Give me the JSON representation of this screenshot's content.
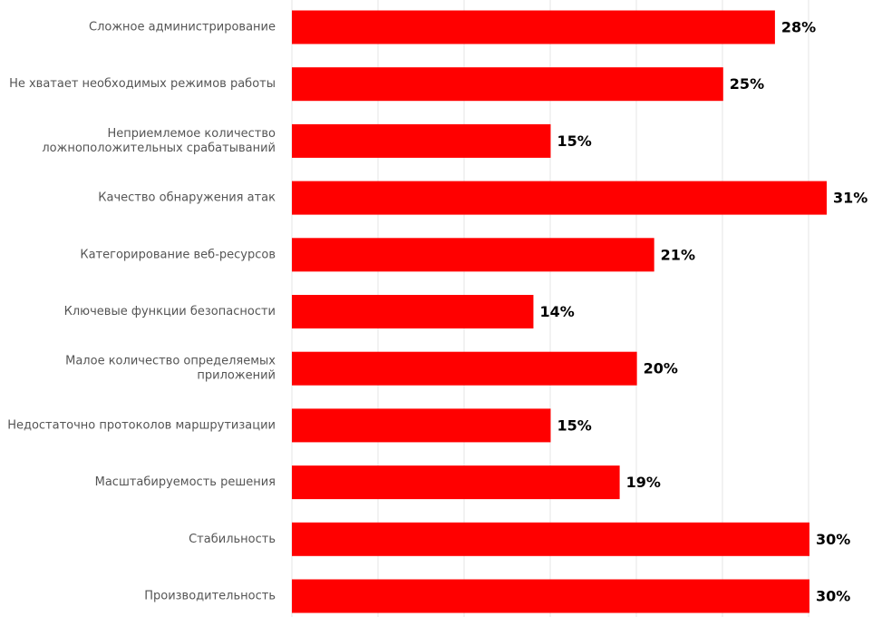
{
  "chart_data": {
    "type": "bar",
    "orientation": "horizontal",
    "categories": [
      "Сложное администрирование",
      "Не хватает необходимых режимов работы",
      "Неприемлемое количество ложноположительных срабатываний",
      "Качество обнаружения атак",
      "Категорирование веб-ресурсов",
      "Ключевые функции безопасности",
      "Малое количество определяемых приложений",
      "Недостаточно протоколов маршрутизации",
      "Масштабируемость решения",
      "Стабильность",
      "Производительность"
    ],
    "category_lines": [
      [
        "Сложное администрирование"
      ],
      [
        "Не хватает необходимых режимов работы"
      ],
      [
        "Неприемлемое количество",
        "ложноположительных срабатываний"
      ],
      [
        "Качество обнаружения атак"
      ],
      [
        "Категорирование веб-ресурсов"
      ],
      [
        "Ключевые функции безопасности"
      ],
      [
        "Малое количество определяемых",
        "приложений"
      ],
      [
        "Недостаточно протоколов маршрутизации"
      ],
      [
        "Масштабируемость решения"
      ],
      [
        "Стабильность"
      ],
      [
        "Производительность"
      ]
    ],
    "values": [
      28,
      25,
      15,
      31,
      21,
      14,
      20,
      15,
      19,
      30,
      30
    ],
    "value_labels": [
      "28%",
      "25%",
      "15%",
      "31%",
      "21%",
      "14%",
      "20%",
      "15%",
      "19%",
      "30%",
      "30%"
    ],
    "xlim": [
      0,
      31
    ],
    "grid": true,
    "legend": "none",
    "bar_color": "#ff0000",
    "grid_color": "#e6e6e6",
    "label_color": "#555555",
    "value_label_color": "#000000"
  }
}
